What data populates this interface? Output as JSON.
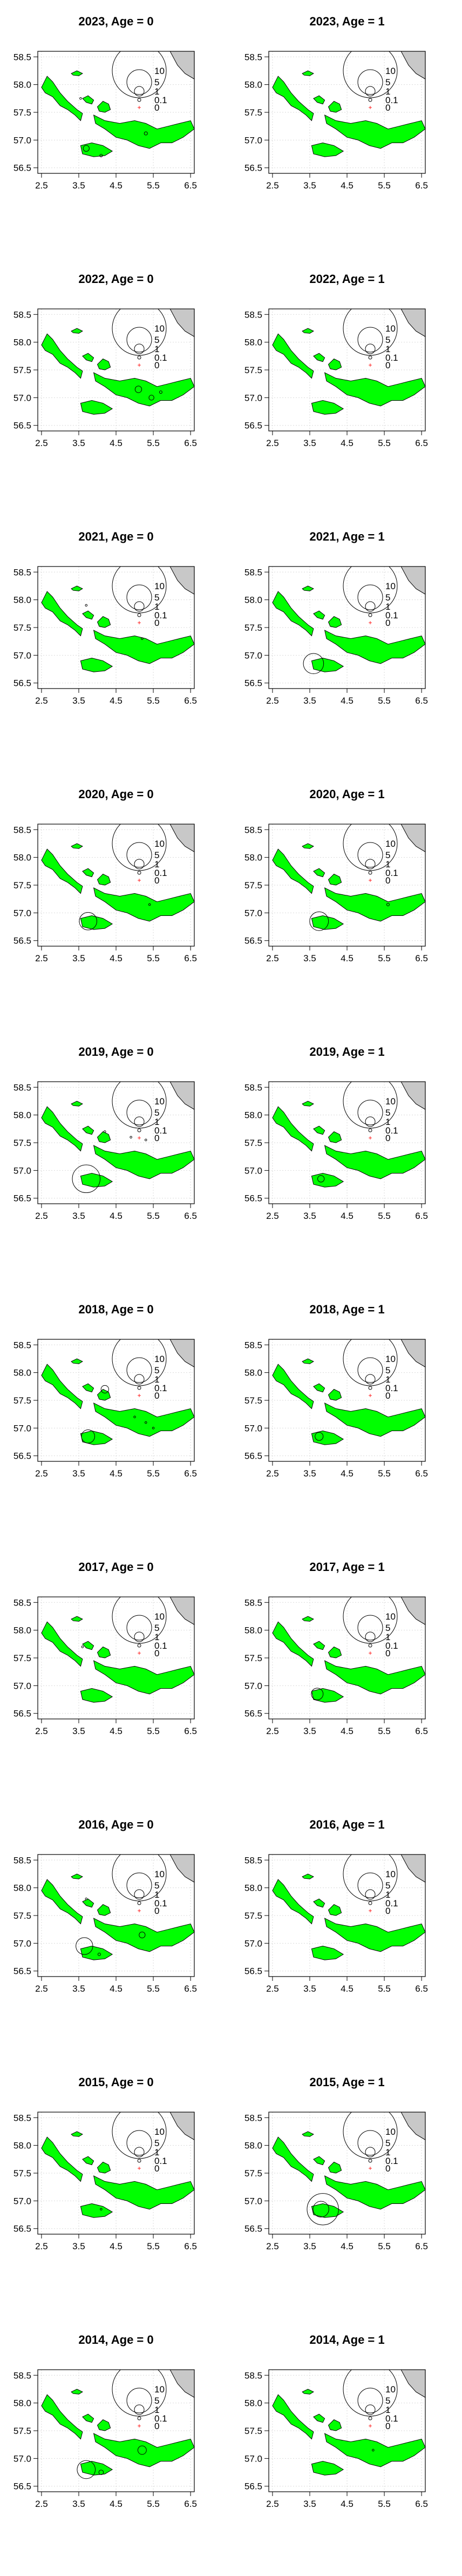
{
  "chart_data": {
    "type": "scatter",
    "subtype": "bubble-map",
    "x_ticks": [
      "2.5",
      "3.5",
      "4.5",
      "5.5",
      "6.5"
    ],
    "y_ticks": [
      "58.5",
      "58.0",
      "57.5",
      "57.0",
      "56.5"
    ],
    "xlim": [
      2.4,
      6.6
    ],
    "ylim": [
      56.4,
      58.6
    ],
    "grid": true,
    "legend": {
      "placement": "top-right",
      "labels": [
        "10",
        "5",
        "1",
        "0.1",
        "0"
      ]
    },
    "colors": {
      "land_north": "#c8c8c8",
      "area": "#00ff00",
      "outline": "#000000",
      "zero_marker": "#ff0000"
    },
    "panels": [
      {
        "title": "2023, Age = 0",
        "points": [
          [
            3.7,
            56.85,
            0.5
          ],
          [
            4.1,
            56.72,
            0.1
          ],
          [
            5.3,
            57.12,
            0.15
          ],
          [
            3.55,
            57.75,
            0.05
          ]
        ]
      },
      {
        "title": "2023, Age = 1",
        "points": []
      },
      {
        "title": "2022, Age = 0",
        "points": [
          [
            5.1,
            57.15,
            0.6
          ],
          [
            5.45,
            57.0,
            0.35
          ],
          [
            5.7,
            57.1,
            0.1
          ]
        ]
      },
      {
        "title": "2022, Age = 1",
        "points": []
      },
      {
        "title": "2021, Age = 0",
        "points": [
          [
            3.7,
            57.9,
            0.05
          ],
          [
            5.2,
            57.3,
            0.05
          ]
        ]
      },
      {
        "title": "2021, Age = 1",
        "points": [
          [
            3.6,
            56.85,
            5.6
          ]
        ]
      },
      {
        "title": "2020, Age = 0",
        "points": [
          [
            3.75,
            56.85,
            4.2
          ],
          [
            5.4,
            57.15,
            0.05
          ]
        ]
      },
      {
        "title": "2020, Age = 1",
        "points": [
          [
            3.75,
            56.85,
            4.8
          ],
          [
            5.6,
            57.15,
            0.1
          ]
        ]
      },
      {
        "title": "2019, Age = 0",
        "points": [
          [
            3.7,
            56.85,
            10.5
          ],
          [
            4.2,
            57.7,
            0.05
          ],
          [
            4.9,
            57.6,
            0.05
          ],
          [
            5.3,
            57.55,
            0.05
          ]
        ]
      },
      {
        "title": "2019, Age = 1",
        "points": [
          [
            3.8,
            56.85,
            0.6
          ]
        ]
      },
      {
        "title": "2018, Age = 0",
        "points": [
          [
            4.2,
            57.7,
            0.8
          ],
          [
            3.75,
            56.85,
            2.4
          ],
          [
            5.0,
            57.2,
            0.05
          ],
          [
            5.3,
            57.1,
            0.05
          ],
          [
            5.5,
            57.0,
            0.05
          ]
        ]
      },
      {
        "title": "2018, Age = 1",
        "points": [
          [
            3.75,
            56.85,
            0.9
          ]
        ]
      },
      {
        "title": "2017, Age = 0",
        "points": [
          [
            3.6,
            57.7,
            0.05
          ]
        ]
      },
      {
        "title": "2017, Age = 1",
        "points": [
          [
            3.7,
            56.85,
            1.9
          ]
        ]
      },
      {
        "title": "2016, Age = 0",
        "points": [
          [
            3.65,
            56.95,
            3.9
          ],
          [
            4.05,
            56.8,
            0.1
          ],
          [
            5.2,
            57.15,
            0.5
          ],
          [
            3.7,
            57.8,
            0.05
          ]
        ]
      },
      {
        "title": "2016, Age = 1",
        "points": []
      },
      {
        "title": "2015, Age = 0",
        "points": [
          [
            4.1,
            56.85,
            0.05
          ]
        ]
      },
      {
        "title": "2015, Age = 1",
        "points": [
          [
            3.85,
            56.85,
            13.5
          ],
          [
            3.8,
            56.85,
            3.4
          ]
        ]
      },
      {
        "title": "2014, Age = 0",
        "points": [
          [
            3.7,
            56.8,
            4.5
          ],
          [
            5.2,
            57.15,
            1.0
          ],
          [
            4.1,
            56.75,
            0.3
          ]
        ]
      },
      {
        "title": "2014, Age = 1",
        "points": [
          [
            5.2,
            57.15,
            0.05
          ]
        ]
      }
    ]
  }
}
